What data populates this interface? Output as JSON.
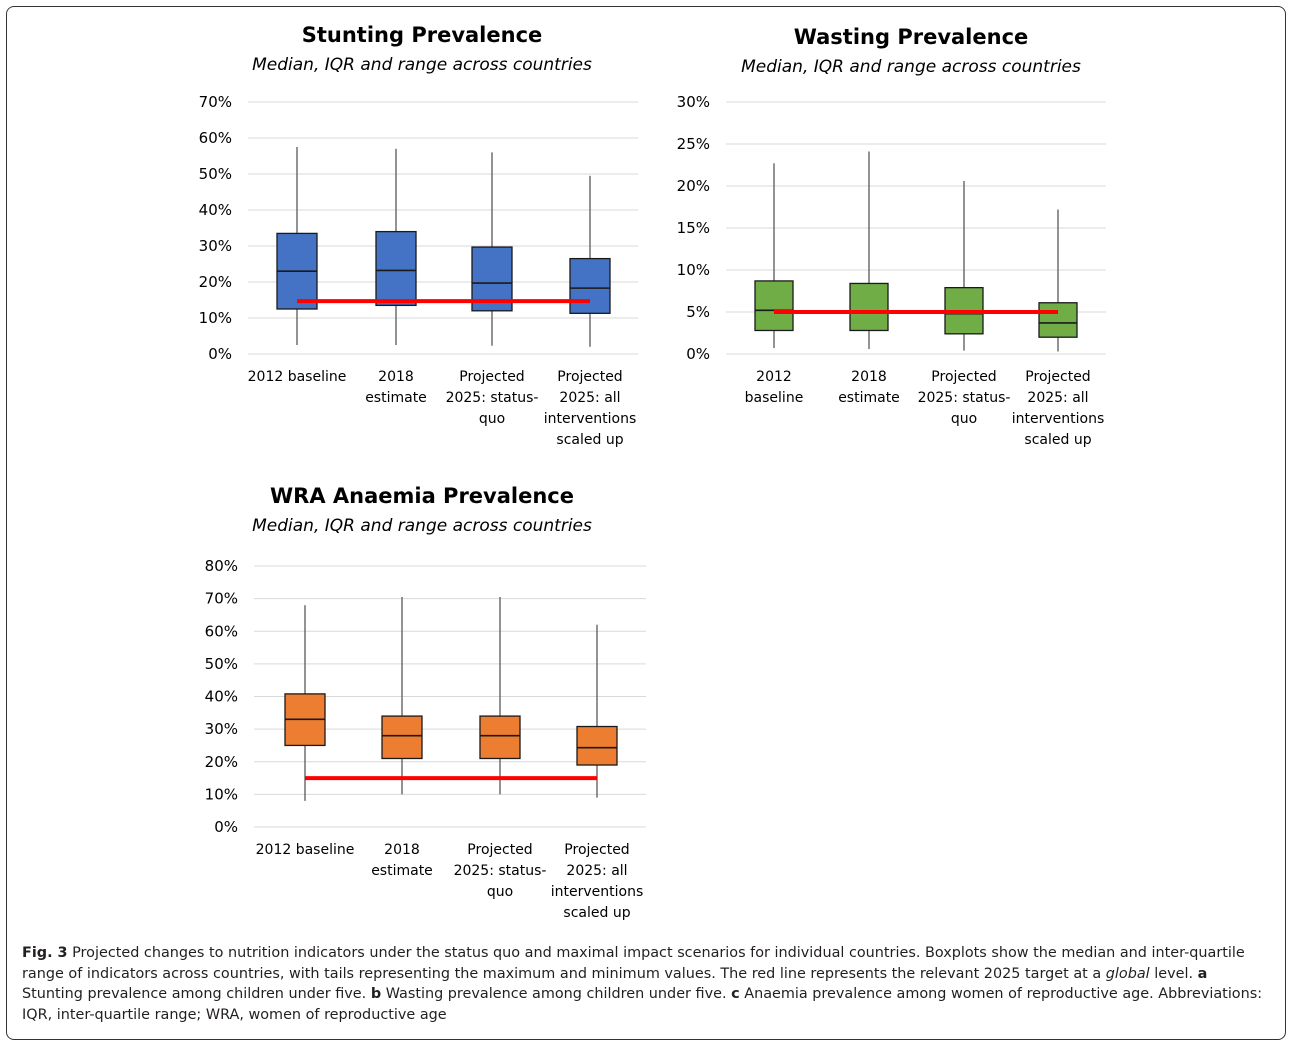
{
  "chart_data": [
    {
      "type": "boxplot",
      "title": "Stunting Prevalence",
      "subtitle": "Median, IQR and range across countries",
      "color": "#4472c4",
      "ylim": [
        0,
        70
      ],
      "yticks": [
        0,
        10,
        20,
        30,
        40,
        50,
        60,
        70
      ],
      "ytick_suffix": "%",
      "target": 14.7,
      "target_color": "#ff0000",
      "categories": [
        [
          "2012 baseline"
        ],
        [
          "2018",
          "estimate"
        ],
        [
          "Projected",
          "2025: status-",
          "quo"
        ],
        [
          "Projected",
          "2025: all",
          "interventions",
          "scaled up"
        ]
      ],
      "boxes": [
        {
          "min": 2.5,
          "q1": 12.5,
          "median": 23.0,
          "q3": 33.5,
          "max": 57.5
        },
        {
          "min": 2.5,
          "q1": 13.5,
          "median": 23.2,
          "q3": 34.0,
          "max": 57.0
        },
        {
          "min": 2.3,
          "q1": 12.0,
          "median": 19.7,
          "q3": 29.7,
          "max": 56.0
        },
        {
          "min": 2.0,
          "q1": 11.3,
          "median": 18.3,
          "q3": 26.5,
          "max": 49.5
        }
      ]
    },
    {
      "type": "boxplot",
      "title": "Wasting Prevalence",
      "subtitle": "Median, IQR and range across countries",
      "color": "#70ad47",
      "ylim": [
        0,
        30
      ],
      "yticks": [
        0,
        5,
        10,
        15,
        20,
        25,
        30
      ],
      "ytick_suffix": "%",
      "target": 5,
      "target_color": "#ff0000",
      "categories": [
        [
          "2012",
          "baseline"
        ],
        [
          "2018",
          "estimate"
        ],
        [
          "Projected",
          "2025: status-",
          "quo"
        ],
        [
          "Projected",
          "2025: all",
          "interventions",
          "scaled up"
        ]
      ],
      "boxes": [
        {
          "min": 0.7,
          "q1": 2.8,
          "median": 5.2,
          "q3": 8.7,
          "max": 22.7
        },
        {
          "min": 0.6,
          "q1": 2.8,
          "median": 5.0,
          "q3": 8.4,
          "max": 24.1
        },
        {
          "min": 0.4,
          "q1": 2.4,
          "median": 4.8,
          "q3": 7.9,
          "max": 20.6
        },
        {
          "min": 0.3,
          "q1": 2.0,
          "median": 3.7,
          "q3": 6.1,
          "max": 17.2
        }
      ]
    },
    {
      "type": "boxplot",
      "title": "WRA Anaemia Prevalence",
      "subtitle": "Median, IQR and range across countries",
      "color": "#ed7d31",
      "ylim": [
        0,
        80
      ],
      "yticks": [
        0,
        10,
        20,
        30,
        40,
        50,
        60,
        70,
        80
      ],
      "ytick_suffix": "%",
      "target": 15,
      "target_color": "#ff0000",
      "categories": [
        [
          "2012 baseline"
        ],
        [
          "2018",
          "estimate"
        ],
        [
          "Projected",
          "2025: status-",
          "quo"
        ],
        [
          "Projected",
          "2025: all",
          "interventions",
          "scaled up"
        ]
      ],
      "boxes": [
        {
          "min": 8.0,
          "q1": 25.0,
          "median": 33.0,
          "q3": 40.8,
          "max": 68.0
        },
        {
          "min": 10.0,
          "q1": 21.0,
          "median": 28.0,
          "q3": 34.0,
          "max": 70.5
        },
        {
          "min": 10.0,
          "q1": 21.0,
          "median": 28.0,
          "q3": 34.0,
          "max": 70.5
        },
        {
          "min": 9.0,
          "q1": 19.0,
          "median": 24.3,
          "q3": 30.8,
          "max": 62.0
        }
      ]
    }
  ],
  "caption": {
    "fig_label": "Fig. 3",
    "text_1": " Projected changes to nutrition indicators under the status quo and maximal impact scenarios for individual countries. Boxplots show the median and inter-quartile range of indicators across countries, with tails representing the maximum and minimum values. The red line represents the relevant 2025 target at a ",
    "emphasis": "global",
    "text_2": " level. ",
    "label_a": "a",
    "text_a": " Stunting prevalence among children under five. ",
    "label_b": "b",
    "text_b": " Wasting prevalence among children under five. ",
    "label_c": "c",
    "text_c": " Anaemia prevalence among women of reproductive age. Abbreviations: IQR, inter-quartile range; WRA, women of reproductive age"
  }
}
